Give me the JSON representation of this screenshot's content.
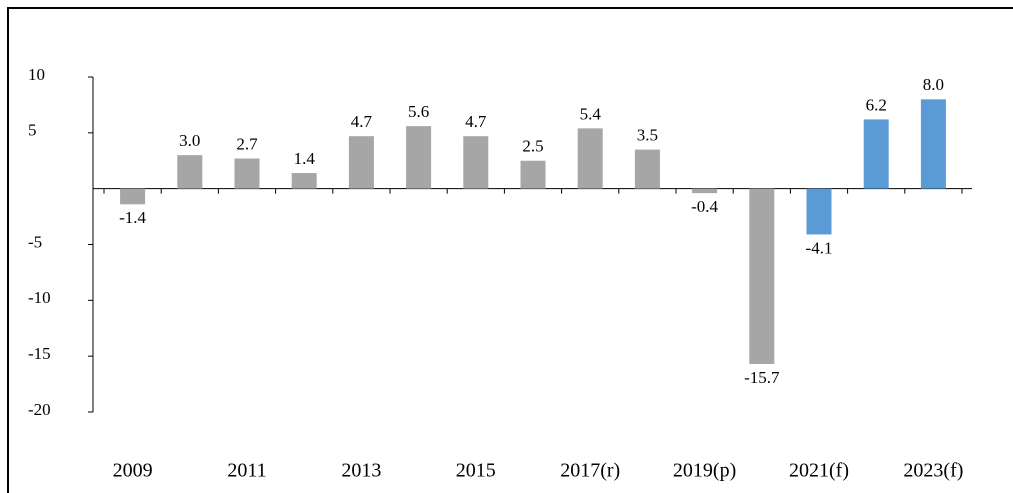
{
  "chart_data": {
    "type": "bar",
    "categories": [
      "2009",
      null,
      "2011",
      null,
      "2013",
      null,
      "2015",
      null,
      "2017(r)",
      null,
      "2019(p)",
      null,
      "2021(f)",
      null,
      "2023(f)"
    ],
    "values": [
      -1.4,
      3.0,
      2.7,
      1.4,
      4.7,
      5.6,
      4.7,
      2.5,
      5.4,
      3.5,
      -0.4,
      -15.7,
      -4.1,
      6.2,
      8.0
    ],
    "value_labels": [
      "-1.4",
      "3.0",
      "2.7",
      "1.4",
      "4.7",
      "5.6",
      "4.7",
      "2.5",
      "5.4",
      "3.5",
      "-0.4",
      "-15.7",
      "-4.1",
      "6.2",
      "8.0"
    ],
    "colors": [
      "#a6a6a6",
      "#a6a6a6",
      "#a6a6a6",
      "#a6a6a6",
      "#a6a6a6",
      "#a6a6a6",
      "#a6a6a6",
      "#a6a6a6",
      "#a6a6a6",
      "#a6a6a6",
      "#a6a6a6",
      "#a6a6a6",
      "#5b9bd5",
      "#5b9bd5",
      "#5b9bd5"
    ],
    "ylim": [
      -20,
      10
    ],
    "yticks": [
      10,
      5,
      -5,
      -10,
      -15,
      -20
    ],
    "grid": false
  }
}
